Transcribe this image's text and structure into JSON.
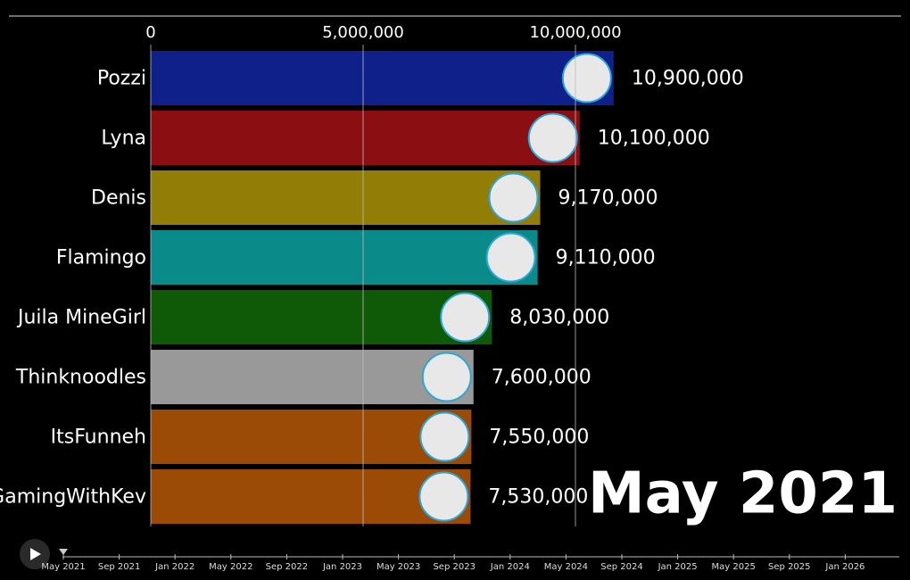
{
  "chart_data": {
    "type": "bar",
    "orientation": "horizontal",
    "period": "May 2021",
    "categories": [
      "Pozzi",
      "Lyna",
      "Denis",
      "Flamingo",
      "Juila MineGirl",
      "Thinknoodles",
      "ItsFunneh",
      "GamingWithKev"
    ],
    "values": [
      10900000,
      10100000,
      9170000,
      9110000,
      8030000,
      7600000,
      7550000,
      7530000
    ],
    "value_labels": [
      "10,900,000",
      "10,100,000",
      "9,170,000",
      "9,110,000",
      "8,030,000",
      "7,600,000",
      "7,550,000",
      "7,530,000"
    ],
    "colors": [
      "#10208a",
      "#8b0f12",
      "#927d07",
      "#0b8a8a",
      "#0f5a07",
      "#999999",
      "#9b4b05",
      "#9b4b05"
    ],
    "xlim": [
      0,
      17500000
    ],
    "xticks": [
      0,
      {
        "value": 5000000,
        "label": "5,000,000"
      },
      {
        "value": 10000000,
        "label": "10,000,000"
      }
    ],
    "grid": true,
    "timeline": [
      "May 2021",
      "Sep 2021",
      "Jan 2022",
      "May 2022",
      "Sep 2022",
      "Jan 2023",
      "May 2023",
      "Sep 2023",
      "Jan 2024",
      "May 2024",
      "Sep 2024",
      "Jan 2025",
      "May 2025",
      "Sep 2025",
      "Jan 2026"
    ]
  }
}
